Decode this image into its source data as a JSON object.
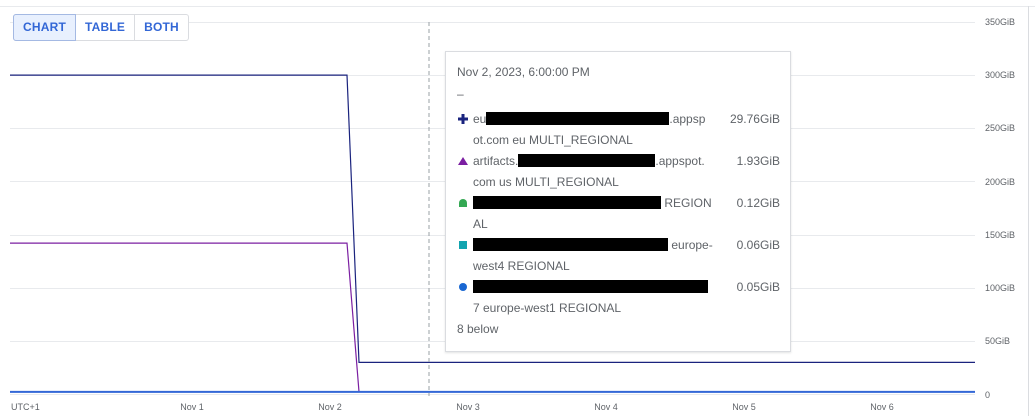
{
  "view_toggle": {
    "chart_label": "CHART",
    "table_label": "TABLE",
    "both_label": "BOTH",
    "active": "CHART"
  },
  "y_axis": {
    "ticks": [
      "350GiB",
      "300GiB",
      "250GiB",
      "200GiB",
      "150GiB",
      "100GiB",
      "50GiB",
      "0"
    ]
  },
  "x_axis": {
    "ticks": [
      "UTC+1",
      "Nov 1",
      "Nov 2",
      "Nov 3",
      "Nov 4",
      "Nov 5",
      "Nov 6"
    ]
  },
  "tooltip": {
    "date": "Nov 2, 2023, 6:00:00 PM",
    "dash": "–",
    "rows": [
      {
        "icon": "plus-icon",
        "color": "#1a237e",
        "name_prefix": "eu",
        "name_suffix": ".appsp",
        "name_line2": "ot.com eu MULTI_REGIONAL",
        "value": "29.76GiB"
      },
      {
        "icon": "triangle-icon",
        "color": "#7b1fa2",
        "name_prefix": "artifacts.",
        "name_suffix": ".appspot.",
        "name_line2": "com us MULTI_REGIONAL",
        "value": "1.93GiB"
      },
      {
        "icon": "shield-icon",
        "color": "#34a853",
        "name_prefix": "",
        "name_suffix": "REGION",
        "name_line2": "AL",
        "value": "0.12GiB"
      },
      {
        "icon": "square-icon",
        "color": "#12a4af",
        "name_prefix": "",
        "name_suffix": "europe-",
        "name_line2": "west4 REGIONAL",
        "value": "0.06GiB"
      },
      {
        "icon": "circle-icon",
        "color": "#1967d2",
        "name_prefix": "",
        "name_suffix": "",
        "name_line2": "7 europe-west1 REGIONAL",
        "value": "0.05GiB"
      }
    ],
    "more": "8 below"
  },
  "colors": {
    "series_navy": "#1a237e",
    "series_purple": "#7b1fa2",
    "series_blue": "#3367d6",
    "grid": "#e8eaed",
    "crosshair": "#9aa0a6"
  },
  "chart_data": {
    "type": "line",
    "x": [
      "Oct 31",
      "Nov 1",
      "Nov 2",
      "Nov 2 12:00",
      "Nov 3",
      "Nov 4",
      "Nov 5",
      "Nov 6",
      "Nov 6 16:00"
    ],
    "ylim": [
      0,
      350
    ],
    "yunit": "GiB",
    "series": [
      {
        "color": "#1a237e",
        "values": [
          300,
          300,
          300,
          29.76,
          29.76,
          29.76,
          29.76,
          29.76,
          29.76
        ]
      },
      {
        "color": "#7b1fa2",
        "values": [
          142,
          142,
          142,
          1.93,
          1.93,
          1.93,
          1.93,
          1.93,
          1.93
        ]
      },
      {
        "color": "#3367d6",
        "values": [
          2,
          2,
          2,
          2,
          2,
          2,
          2,
          2,
          2
        ]
      }
    ],
    "hover_x": "Nov 2, 2023, 6:00:00 PM"
  }
}
